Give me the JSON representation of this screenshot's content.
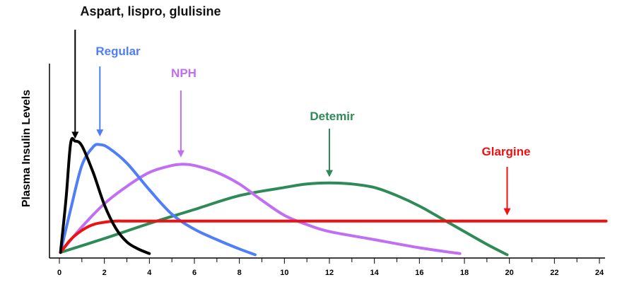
{
  "chart_data": {
    "type": "line",
    "title": "",
    "xlabel": "",
    "ylabel": "Plasma Insulin Levels",
    "xlim": [
      0,
      24
    ],
    "ylim": [
      0,
      1
    ],
    "x_ticks": [
      0,
      2,
      4,
      6,
      8,
      10,
      12,
      14,
      16,
      18,
      20,
      22,
      24
    ],
    "grid": false,
    "legend": "none",
    "series": [
      {
        "name": "Aspart, lispro, glulisine",
        "color": "#000000",
        "x": [
          0.05,
          0.3,
          0.5,
          0.7,
          1.0,
          1.5,
          2.0,
          2.5,
          3.0,
          3.5,
          4.0
        ],
        "y": [
          0.03,
          0.5,
          0.97,
          0.99,
          0.95,
          0.72,
          0.44,
          0.24,
          0.12,
          0.06,
          0.02
        ],
        "annotation": {
          "label": "Aspart, lispro, glulisine",
          "x": 0.7,
          "arrow_y": 1.01
        }
      },
      {
        "name": "Regular",
        "color": "#4f7ef8",
        "x": [
          0.05,
          0.5,
          1.0,
          1.5,
          1.8,
          2.2,
          3.0,
          4.0,
          5.0,
          6.0,
          7.0,
          8.0,
          8.7
        ],
        "y": [
          0.03,
          0.4,
          0.78,
          0.94,
          0.96,
          0.93,
          0.8,
          0.57,
          0.36,
          0.23,
          0.14,
          0.06,
          0.01
        ],
        "annotation": {
          "label": "Regular",
          "x": 1.8,
          "arrow_y": 1.03
        }
      },
      {
        "name": "NPH",
        "color": "#c06ef4",
        "x": [
          0.05,
          1.0,
          2.0,
          3.0,
          4.0,
          5.0,
          5.5,
          6.0,
          7.0,
          8.0,
          9.0,
          10.0,
          11.0,
          12.0,
          14.0,
          16.0,
          17.8
        ],
        "y": [
          0.03,
          0.25,
          0.45,
          0.6,
          0.72,
          0.78,
          0.79,
          0.78,
          0.72,
          0.62,
          0.48,
          0.35,
          0.27,
          0.21,
          0.14,
          0.07,
          0.02
        ],
        "annotation": {
          "label": "NPH",
          "x": 5.4,
          "arrow_y": 0.85
        }
      },
      {
        "name": "Detemir",
        "color": "#2e8b57",
        "x": [
          0.05,
          2.0,
          4.0,
          6.0,
          8.0,
          10.0,
          11.0,
          12.0,
          13.0,
          14.0,
          15.0,
          16.0,
          17.0,
          18.0,
          19.0,
          19.9
        ],
        "y": [
          0.03,
          0.15,
          0.28,
          0.4,
          0.52,
          0.59,
          0.62,
          0.63,
          0.62,
          0.59,
          0.52,
          0.43,
          0.32,
          0.21,
          0.1,
          0.01
        ],
        "annotation": {
          "label": "Detemir",
          "x": 12.0,
          "arrow_y": 0.68
        }
      },
      {
        "name": "Glargine",
        "color": "#ee1111",
        "x": [
          0.05,
          0.5,
          1.0,
          1.5,
          2.0,
          2.5,
          3.0,
          4.0,
          6.0,
          10.0,
          16.0,
          20.0,
          24.3
        ],
        "y": [
          0.03,
          0.14,
          0.22,
          0.27,
          0.29,
          0.3,
          0.3,
          0.3,
          0.3,
          0.3,
          0.3,
          0.3,
          0.3
        ],
        "annotation": {
          "label": "Glargine",
          "x": 19.9,
          "arrow_y": 0.35
        }
      }
    ]
  }
}
